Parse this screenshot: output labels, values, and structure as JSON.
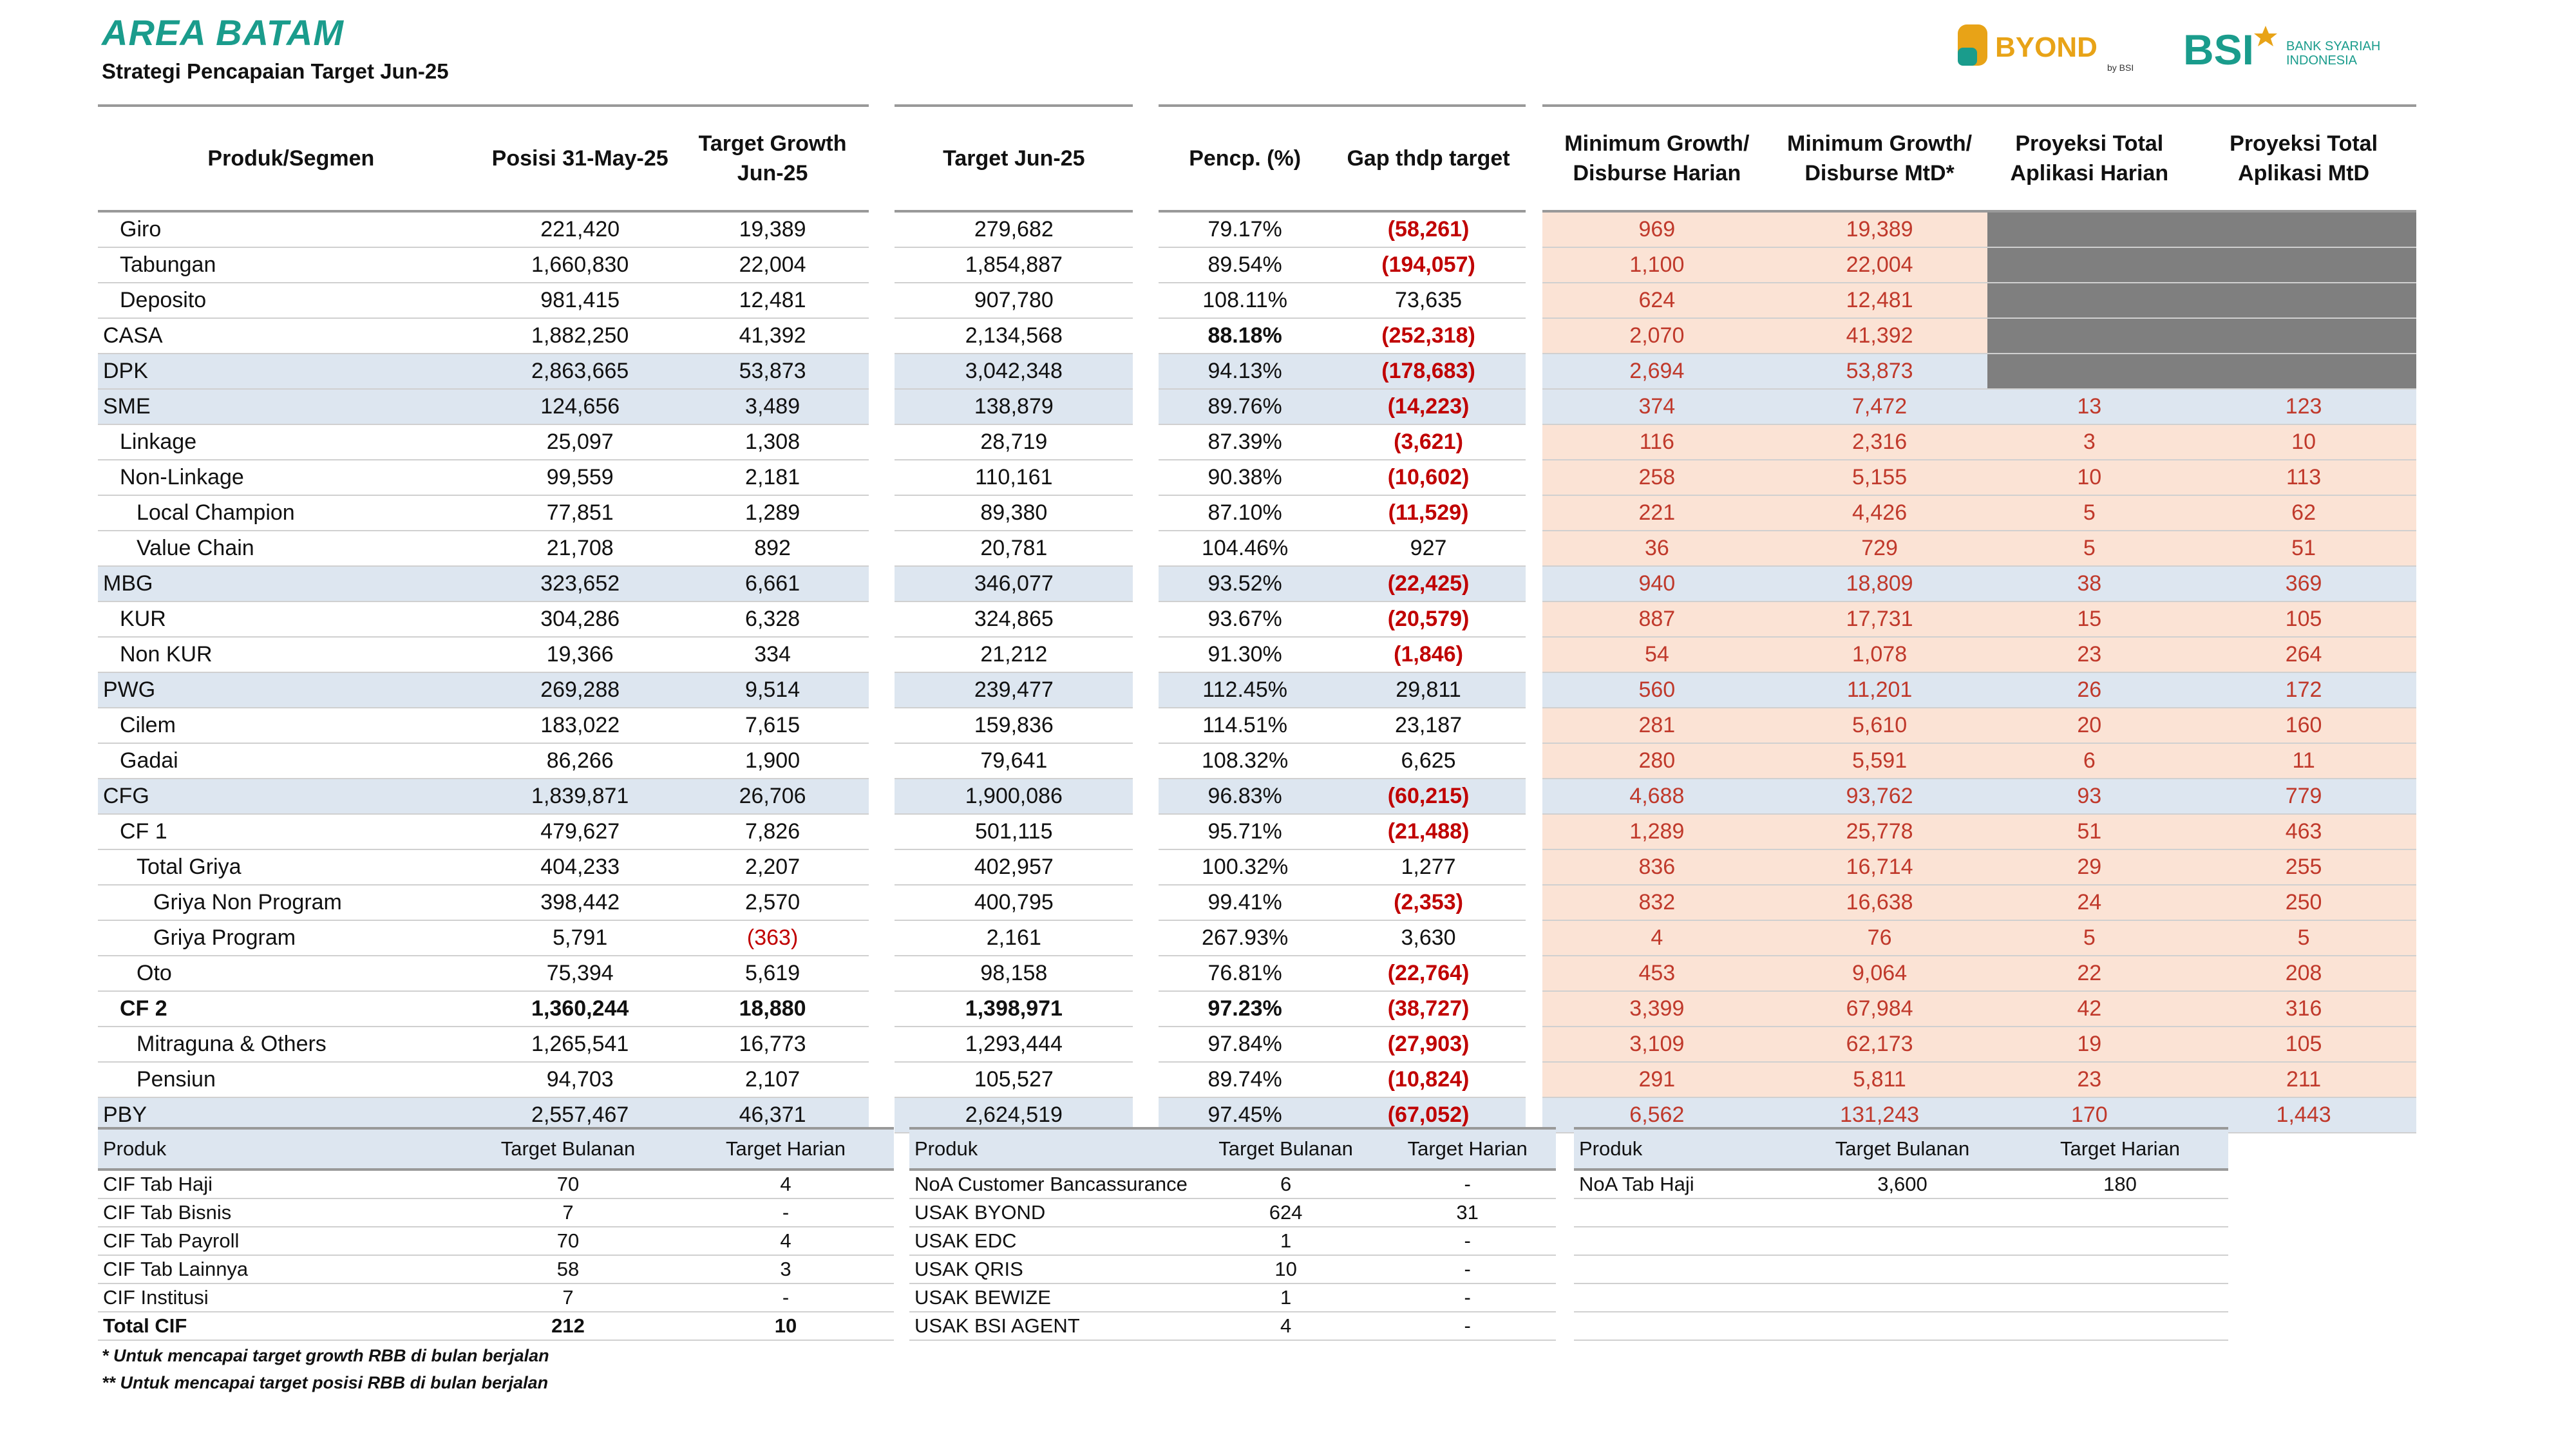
{
  "header": {
    "title": "AREA BATAM",
    "subtitle": "Strategi Pencapaian Target Jun-25",
    "logo_byond": "BYOND",
    "logo_byond_sub": "by BSI",
    "logo_bsi": "BSI",
    "logo_bsi_line1": "BANK SYARIAH",
    "logo_bsi_line2": "INDONESIA",
    "colors": {
      "accent": "#1a9c8c",
      "byond": "#e8a317",
      "red": "#c00000",
      "peach": "#fbe3d5",
      "blue_band": "#dde6f0",
      "grey": "#7f7f7f"
    }
  },
  "main": {
    "columns": [
      "Produk/Segmen",
      "Posisi 31-May-25",
      "Target Growth Jun-25",
      "Target Jun-25",
      "Pencp. (%)",
      "Gap thdp target",
      "Minimum Growth/ Disburse Harian",
      "Minimum Growth/ Disburse MtD*",
      "Proyeksi Total Aplikasi Harian",
      "Proyeksi Total Aplikasi MtD"
    ],
    "rows": [
      {
        "name": "Giro",
        "indent": 1,
        "type": "item",
        "posisi": "221,420",
        "growth": "19,389",
        "target": "279,682",
        "pencp": "79.17%",
        "gap": "(58,261)",
        "min_h": "969",
        "min_m": "19,389",
        "proy_h": "",
        "proy_m": "",
        "grey": true
      },
      {
        "name": "Tabungan",
        "indent": 1,
        "type": "item",
        "posisi": "1,660,830",
        "growth": "22,004",
        "target": "1,854,887",
        "pencp": "89.54%",
        "gap": "(194,057)",
        "min_h": "1,100",
        "min_m": "22,004",
        "proy_h": "",
        "proy_m": "",
        "grey": true
      },
      {
        "name": "Deposito",
        "indent": 1,
        "type": "item",
        "posisi": "981,415",
        "growth": "12,481",
        "target": "907,780",
        "pencp": "108.11%",
        "gap": "73,635",
        "min_h": "624",
        "min_m": "12,481",
        "proy_h": "",
        "proy_m": "",
        "grey": true
      },
      {
        "name": "CASA",
        "indent": 0,
        "type": "casa",
        "posisi": "1,882,250",
        "growth": "41,392",
        "target": "2,134,568",
        "pencp": "88.18%",
        "gap": "(252,318)",
        "min_h": "2,070",
        "min_m": "41,392",
        "proy_h": "",
        "proy_m": "",
        "grey": true
      },
      {
        "name": "DPK",
        "indent": 0,
        "type": "sub",
        "posisi": "2,863,665",
        "growth": "53,873",
        "target": "3,042,348",
        "pencp": "94.13%",
        "gap": "(178,683)",
        "min_h": "2,694",
        "min_m": "53,873",
        "proy_h": "",
        "proy_m": "",
        "grey": true
      },
      {
        "name": "SME",
        "indent": 0,
        "type": "sub",
        "posisi": "124,656",
        "growth": "3,489",
        "target": "138,879",
        "pencp": "89.76%",
        "gap": "(14,223)",
        "min_h": "374",
        "min_m": "7,472",
        "proy_h": "13",
        "proy_m": "123"
      },
      {
        "name": "Linkage",
        "indent": 1,
        "type": "item",
        "posisi": "25,097",
        "growth": "1,308",
        "target": "28,719",
        "pencp": "87.39%",
        "gap": "(3,621)",
        "min_h": "116",
        "min_m": "2,316",
        "proy_h": "3",
        "proy_m": "10"
      },
      {
        "name": "Non-Linkage",
        "indent": 1,
        "type": "item",
        "posisi": "99,559",
        "growth": "2,181",
        "target": "110,161",
        "pencp": "90.38%",
        "gap": "(10,602)",
        "min_h": "258",
        "min_m": "5,155",
        "proy_h": "10",
        "proy_m": "113"
      },
      {
        "name": "Local Champion",
        "indent": 2,
        "type": "item",
        "posisi": "77,851",
        "growth": "1,289",
        "target": "89,380",
        "pencp": "87.10%",
        "gap": "(11,529)",
        "min_h": "221",
        "min_m": "4,426",
        "proy_h": "5",
        "proy_m": "62"
      },
      {
        "name": "Value Chain",
        "indent": 2,
        "type": "item",
        "posisi": "21,708",
        "growth": "892",
        "target": "20,781",
        "pencp": "104.46%",
        "gap": "927",
        "min_h": "36",
        "min_m": "729",
        "proy_h": "5",
        "proy_m": "51"
      },
      {
        "name": "MBG",
        "indent": 0,
        "type": "sub",
        "posisi": "323,652",
        "growth": "6,661",
        "target": "346,077",
        "pencp": "93.52%",
        "gap": "(22,425)",
        "min_h": "940",
        "min_m": "18,809",
        "proy_h": "38",
        "proy_m": "369"
      },
      {
        "name": "KUR",
        "indent": 1,
        "type": "item",
        "posisi": "304,286",
        "growth": "6,328",
        "target": "324,865",
        "pencp": "93.67%",
        "gap": "(20,579)",
        "min_h": "887",
        "min_m": "17,731",
        "proy_h": "15",
        "proy_m": "105"
      },
      {
        "name": "Non KUR",
        "indent": 1,
        "type": "item",
        "posisi": "19,366",
        "growth": "334",
        "target": "21,212",
        "pencp": "91.30%",
        "gap": "(1,846)",
        "min_h": "54",
        "min_m": "1,078",
        "proy_h": "23",
        "proy_m": "264"
      },
      {
        "name": "PWG",
        "indent": 0,
        "type": "sub",
        "posisi": "269,288",
        "growth": "9,514",
        "target": "239,477",
        "pencp": "112.45%",
        "gap": "29,811",
        "min_h": "560",
        "min_m": "11,201",
        "proy_h": "26",
        "proy_m": "172"
      },
      {
        "name": "Cilem",
        "indent": 1,
        "type": "item",
        "posisi": "183,022",
        "growth": "7,615",
        "target": "159,836",
        "pencp": "114.51%",
        "gap": "23,187",
        "min_h": "281",
        "min_m": "5,610",
        "proy_h": "20",
        "proy_m": "160"
      },
      {
        "name": "Gadai",
        "indent": 1,
        "type": "item",
        "posisi": "86,266",
        "growth": "1,900",
        "target": "79,641",
        "pencp": "108.32%",
        "gap": "6,625",
        "min_h": "280",
        "min_m": "5,591",
        "proy_h": "6",
        "proy_m": "11"
      },
      {
        "name": "CFG",
        "indent": 0,
        "type": "sub",
        "posisi": "1,839,871",
        "growth": "26,706",
        "target": "1,900,086",
        "pencp": "96.83%",
        "gap": "(60,215)",
        "min_h": "4,688",
        "min_m": "93,762",
        "proy_h": "93",
        "proy_m": "779"
      },
      {
        "name": "CF 1",
        "indent": 1,
        "type": "item",
        "posisi": "479,627",
        "growth": "7,826",
        "target": "501,115",
        "pencp": "95.71%",
        "gap": "(21,488)",
        "min_h": "1,289",
        "min_m": "25,778",
        "proy_h": "51",
        "proy_m": "463"
      },
      {
        "name": "Total Griya",
        "indent": 2,
        "type": "item",
        "posisi": "404,233",
        "growth": "2,207",
        "target": "402,957",
        "pencp": "100.32%",
        "gap": "1,277",
        "min_h": "836",
        "min_m": "16,714",
        "proy_h": "29",
        "proy_m": "255"
      },
      {
        "name": "Griya Non Program",
        "indent": 3,
        "type": "item",
        "posisi": "398,442",
        "growth": "2,570",
        "target": "400,795",
        "pencp": "99.41%",
        "gap": "(2,353)",
        "min_h": "832",
        "min_m": "16,638",
        "proy_h": "24",
        "proy_m": "250"
      },
      {
        "name": "Griya Program",
        "indent": 3,
        "type": "item",
        "posisi": "5,791",
        "growth": "(363)",
        "target": "2,161",
        "pencp": "267.93%",
        "gap": "3,630",
        "min_h": "4",
        "min_m": "76",
        "proy_h": "5",
        "proy_m": "5"
      },
      {
        "name": "Oto",
        "indent": 2,
        "type": "item",
        "posisi": "75,394",
        "growth": "5,619",
        "target": "98,158",
        "pencp": "76.81%",
        "gap": "(22,764)",
        "min_h": "453",
        "min_m": "9,064",
        "proy_h": "22",
        "proy_m": "208"
      },
      {
        "name": "CF 2",
        "indent": 1,
        "type": "boldrow",
        "posisi": "1,360,244",
        "growth": "18,880",
        "target": "1,398,971",
        "pencp": "97.23%",
        "gap": "(38,727)",
        "min_h": "3,399",
        "min_m": "67,984",
        "proy_h": "42",
        "proy_m": "316"
      },
      {
        "name": "Mitraguna & Others",
        "indent": 2,
        "type": "item",
        "posisi": "1,265,541",
        "growth": "16,773",
        "target": "1,293,444",
        "pencp": "97.84%",
        "gap": "(27,903)",
        "min_h": "3,109",
        "min_m": "62,173",
        "proy_h": "19",
        "proy_m": "105"
      },
      {
        "name": "Pensiun",
        "indent": 2,
        "type": "item",
        "posisi": "94,703",
        "growth": "2,107",
        "target": "105,527",
        "pencp": "89.74%",
        "gap": "(10,824)",
        "min_h": "291",
        "min_m": "5,811",
        "proy_h": "23",
        "proy_m": "211"
      },
      {
        "name": "PBY",
        "indent": 0,
        "type": "sub",
        "posisi": "2,557,467",
        "growth": "46,371",
        "target": "2,624,519",
        "pencp": "97.45%",
        "gap": "(67,052)",
        "min_h": "6,562",
        "min_m": "131,243",
        "proy_h": "170",
        "proy_m": "1,443"
      }
    ]
  },
  "cif_table": {
    "columns": [
      "Produk",
      "Target Bulanan",
      "Target Harian"
    ],
    "rows": [
      {
        "produk": "CIF Tab Haji",
        "bulanan": "70",
        "harian": "4"
      },
      {
        "produk": "CIF Tab Bisnis",
        "bulanan": "7",
        "harian": "-"
      },
      {
        "produk": "CIF Tab Payroll",
        "bulanan": "70",
        "harian": "4"
      },
      {
        "produk": "CIF Tab Lainnya",
        "bulanan": "58",
        "harian": "3"
      },
      {
        "produk": "CIF Institusi",
        "bulanan": "7",
        "harian": "-"
      },
      {
        "produk": "Total CIF",
        "bulanan": "212",
        "harian": "10",
        "bold": true
      }
    ]
  },
  "usak_table": {
    "columns": [
      "Produk",
      "Target Bulanan",
      "Target Harian"
    ],
    "rows": [
      {
        "produk": "NoA Customer Bancassurance",
        "bulanan": "6",
        "harian": "-"
      },
      {
        "produk": "USAK BYOND",
        "bulanan": "624",
        "harian": "31"
      },
      {
        "produk": "USAK EDC",
        "bulanan": "1",
        "harian": "-"
      },
      {
        "produk": "USAK QRIS",
        "bulanan": "10",
        "harian": "-"
      },
      {
        "produk": "USAK BEWIZE",
        "bulanan": "1",
        "harian": "-"
      },
      {
        "produk": "USAK BSI AGENT",
        "bulanan": "4",
        "harian": "-"
      }
    ]
  },
  "noa_table": {
    "columns": [
      "Produk",
      "Target Bulanan",
      "Target Harian"
    ],
    "rows": [
      {
        "produk": "NoA Tab Haji",
        "bulanan": "3,600",
        "harian": "180"
      },
      {
        "produk": "",
        "bulanan": "",
        "harian": ""
      },
      {
        "produk": "",
        "bulanan": "",
        "harian": ""
      },
      {
        "produk": "",
        "bulanan": "",
        "harian": ""
      },
      {
        "produk": "",
        "bulanan": "",
        "harian": ""
      },
      {
        "produk": "",
        "bulanan": "",
        "harian": ""
      }
    ]
  },
  "footnotes": [
    "* Untuk mencapai target growth RBB di bulan berjalan",
    "** Untuk mencapai target posisi RBB di bulan berjalan"
  ]
}
